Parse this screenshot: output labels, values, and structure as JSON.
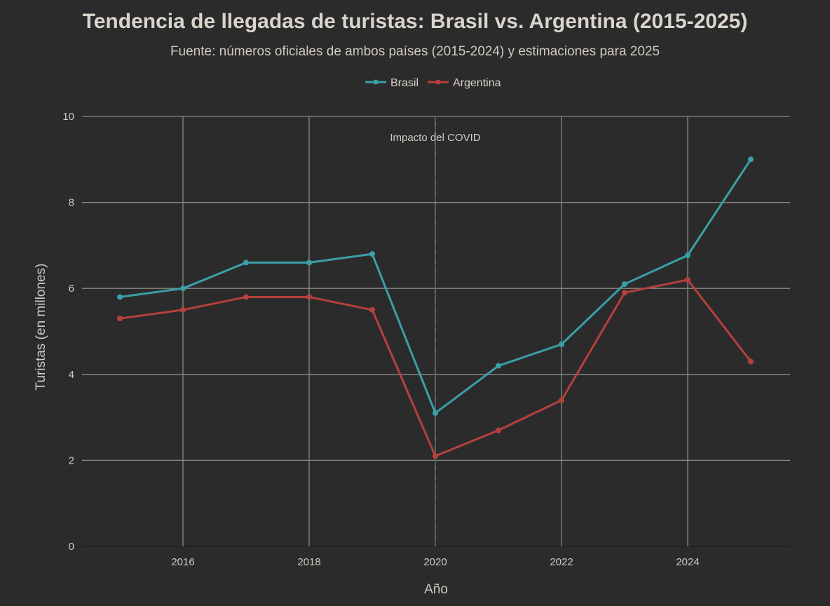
{
  "chart_data": {
    "type": "line",
    "title": "Tendencia de llegadas de turistas: Brasil vs. Argentina (2015-2025)",
    "subtitle": "Fuente: números oficiales de ambos países (2015-2024) y estimaciones para 2025",
    "xlabel": "Año",
    "ylabel": "Turistas (en millones)",
    "x": [
      2015,
      2016,
      2017,
      2018,
      2019,
      2020,
      2021,
      2022,
      2023,
      2024,
      2025
    ],
    "xlim": [
      2014.4,
      2025.6
    ],
    "ylim": [
      0,
      10
    ],
    "xticks": [
      2016,
      2018,
      2020,
      2022,
      2024
    ],
    "yticks": [
      0,
      2,
      4,
      6,
      8,
      10
    ],
    "grid": true,
    "legend": "top-center",
    "series": [
      {
        "name": "Brasil",
        "color": "#3a9fa7",
        "values": [
          5.8,
          6.0,
          6.6,
          6.6,
          6.8,
          3.1,
          4.2,
          4.7,
          6.1,
          6.77,
          9.0
        ]
      },
      {
        "name": "Argentina",
        "color": "#b5403c",
        "values": [
          5.3,
          5.5,
          5.8,
          5.8,
          5.5,
          2.1,
          2.7,
          3.4,
          5.9,
          6.2,
          4.3
        ]
      }
    ],
    "annotations": [
      {
        "text": "Impacto del COVID",
        "x": 2020,
        "line": "dashed vertical"
      }
    ]
  }
}
